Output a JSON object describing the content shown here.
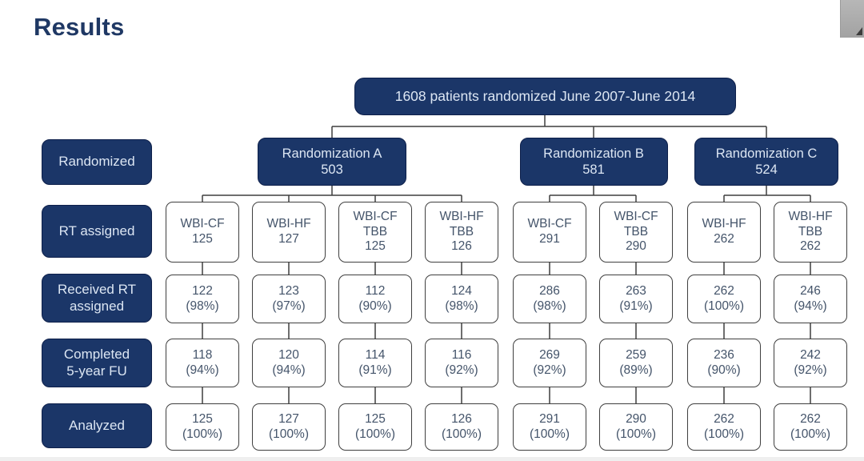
{
  "page": {
    "title": "Results"
  },
  "colors": {
    "navy": "#1b3668",
    "navy_text": "#dce6f3",
    "title": "#1f3864",
    "box_border": "#3f3f3f",
    "box_text": "#44546a",
    "line": "#3f3f3f"
  },
  "flowchart": {
    "root": [
      "1608 patients randomized June 2007-June 2014"
    ],
    "row_labels": [
      [
        "Randomized"
      ],
      [
        "RT assigned"
      ],
      [
        "Received RT",
        "assigned"
      ],
      [
        "Completed",
        "5-year FU"
      ],
      [
        "Analyzed"
      ]
    ],
    "randomizations": [
      {
        "label": [
          "Randomization A",
          "503"
        ],
        "arm_indexes": [
          0,
          1,
          2,
          3
        ]
      },
      {
        "label": [
          "Randomization B",
          "581"
        ],
        "arm_indexes": [
          4,
          5
        ]
      },
      {
        "label": [
          "Randomization C",
          "524"
        ],
        "arm_indexes": [
          6,
          7
        ]
      }
    ],
    "arms": [
      {
        "assigned": [
          "WBI-CF",
          "125"
        ],
        "received": [
          "122",
          "(98%)"
        ],
        "completed": [
          "118",
          "(94%)"
        ],
        "analyzed": [
          "125",
          "(100%)"
        ]
      },
      {
        "assigned": [
          "WBI-HF",
          "127"
        ],
        "received": [
          "123",
          "(97%)"
        ],
        "completed": [
          "120",
          "(94%)"
        ],
        "analyzed": [
          "127",
          "(100%)"
        ]
      },
      {
        "assigned": [
          "WBI-CF",
          "TBB",
          "125"
        ],
        "received": [
          "112",
          "(90%)"
        ],
        "completed": [
          "114",
          "(91%)"
        ],
        "analyzed": [
          "125",
          "(100%)"
        ]
      },
      {
        "assigned": [
          "WBI-HF",
          "TBB",
          "126"
        ],
        "received": [
          "124",
          "(98%)"
        ],
        "completed": [
          "116",
          "(92%)"
        ],
        "analyzed": [
          "126",
          "(100%)"
        ]
      },
      {
        "assigned": [
          "WBI-CF",
          "291"
        ],
        "received": [
          "286",
          "(98%)"
        ],
        "completed": [
          "269",
          "(92%)"
        ],
        "analyzed": [
          "291",
          "(100%)"
        ]
      },
      {
        "assigned": [
          "WBI-CF",
          "TBB",
          "290"
        ],
        "received": [
          "263",
          "(91%)"
        ],
        "completed": [
          "259",
          "(89%)"
        ],
        "analyzed": [
          "290",
          "(100%)"
        ]
      },
      {
        "assigned": [
          "WBI-HF",
          "262"
        ],
        "received": [
          "262",
          "(100%)"
        ],
        "completed": [
          "236",
          "(90%)"
        ],
        "analyzed": [
          "262",
          "(100%)"
        ]
      },
      {
        "assigned": [
          "WBI-HF",
          "TBB",
          "262"
        ],
        "received": [
          "246",
          "(94%)"
        ],
        "completed": [
          "242",
          "(92%)"
        ],
        "analyzed": [
          "262",
          "(100%)"
        ]
      }
    ]
  }
}
